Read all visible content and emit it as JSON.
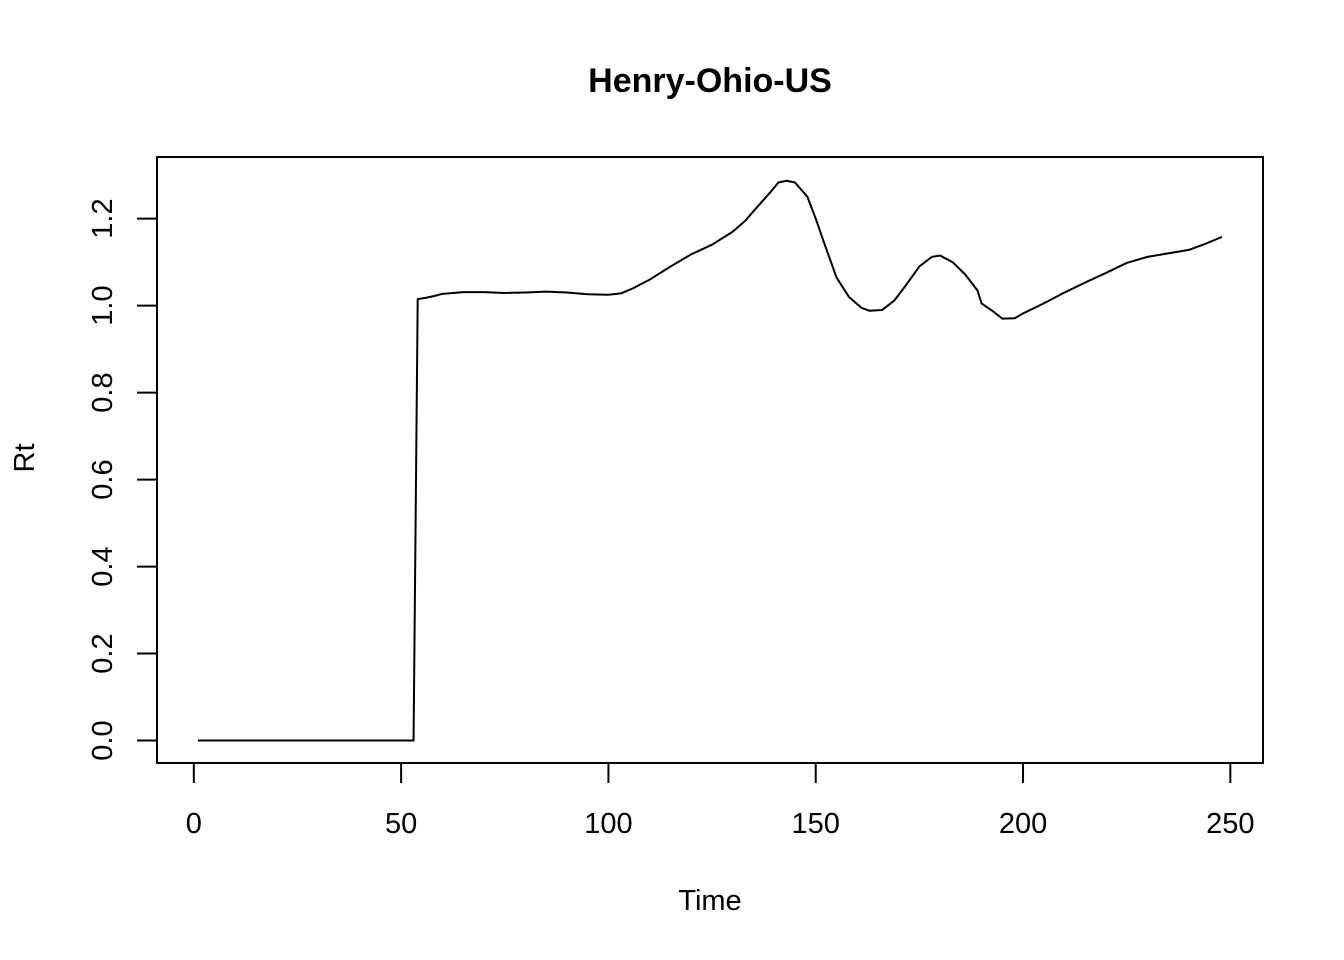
{
  "chart_data": {
    "type": "line",
    "title": "Henry-Ohio-US",
    "xlabel": "Time",
    "ylabel": "Rt",
    "xlim": [
      1,
      248
    ],
    "ylim": [
      0,
      1.29
    ],
    "x_ticks": [
      0,
      50,
      100,
      150,
      200,
      250
    ],
    "x_tick_labels": [
      "0",
      "50",
      "100",
      "150",
      "200",
      "250"
    ],
    "y_ticks": [
      0.0,
      0.2,
      0.4,
      0.6,
      0.8,
      1.0,
      1.2
    ],
    "y_tick_labels": [
      "0.0",
      "0.2",
      "0.4",
      "0.6",
      "0.8",
      "1.0",
      "1.2"
    ],
    "grid": false,
    "series": [
      {
        "color": "#000000",
        "points": [
          [
            1,
            0.0
          ],
          [
            10,
            0.0
          ],
          [
            20,
            0.0
          ],
          [
            30,
            0.0
          ],
          [
            40,
            0.0
          ],
          [
            50,
            0.0
          ],
          [
            53,
            0.0
          ],
          [
            54,
            1.015
          ],
          [
            56,
            1.018
          ],
          [
            58,
            1.022
          ],
          [
            60,
            1.027
          ],
          [
            65,
            1.031
          ],
          [
            70,
            1.031
          ],
          [
            75,
            1.029
          ],
          [
            80,
            1.03
          ],
          [
            85,
            1.032
          ],
          [
            90,
            1.03
          ],
          [
            95,
            1.026
          ],
          [
            100,
            1.025
          ],
          [
            103,
            1.028
          ],
          [
            106,
            1.04
          ],
          [
            110,
            1.06
          ],
          [
            115,
            1.09
          ],
          [
            120,
            1.118
          ],
          [
            125,
            1.14
          ],
          [
            130,
            1.17
          ],
          [
            133,
            1.195
          ],
          [
            136,
            1.228
          ],
          [
            139,
            1.26
          ],
          [
            141,
            1.283
          ],
          [
            143,
            1.287
          ],
          [
            145,
            1.283
          ],
          [
            148,
            1.25
          ],
          [
            150,
            1.2
          ],
          [
            152,
            1.145
          ],
          [
            155,
            1.065
          ],
          [
            158,
            1.02
          ],
          [
            161,
            0.995
          ],
          [
            163,
            0.988
          ],
          [
            166,
            0.99
          ],
          [
            169,
            1.012
          ],
          [
            172,
            1.05
          ],
          [
            175,
            1.09
          ],
          [
            178,
            1.112
          ],
          [
            180,
            1.115
          ],
          [
            183,
            1.1
          ],
          [
            186,
            1.072
          ],
          [
            189,
            1.035
          ],
          [
            190,
            1.005
          ],
          [
            193,
            0.985
          ],
          [
            195,
            0.97
          ],
          [
            198,
            0.971
          ],
          [
            200,
            0.982
          ],
          [
            205,
            1.005
          ],
          [
            210,
            1.03
          ],
          [
            215,
            1.053
          ],
          [
            220,
            1.075
          ],
          [
            225,
            1.098
          ],
          [
            230,
            1.112
          ],
          [
            235,
            1.12
          ],
          [
            240,
            1.128
          ],
          [
            244,
            1.142
          ],
          [
            248,
            1.158
          ]
        ]
      }
    ]
  }
}
